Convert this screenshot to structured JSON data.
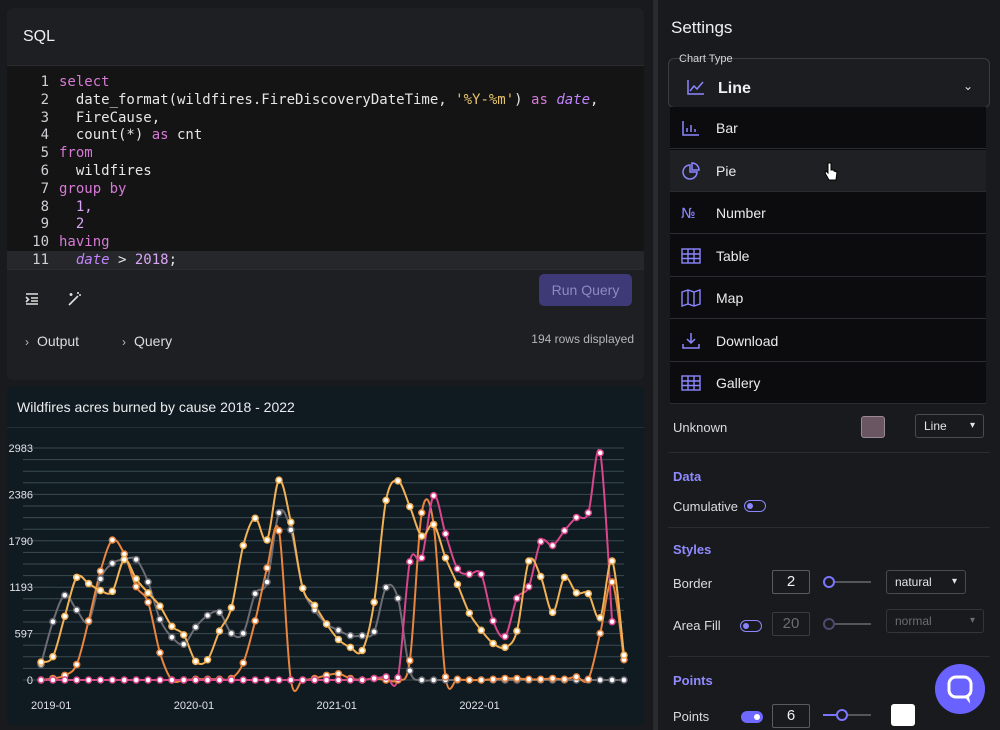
{
  "editor": {
    "title": "SQL",
    "line_numbers": [
      "1",
      "2",
      "3",
      "4",
      "5",
      "6",
      "7",
      "8",
      "9",
      "10",
      "11"
    ],
    "lines": [
      [
        {
          "t": "select",
          "c": "kw"
        }
      ],
      [
        {
          "t": "  date_format(wildfires.FireDiscoveryDateTime, ",
          "c": "fn"
        },
        {
          "t": "'%Y-%m'",
          "c": "str"
        },
        {
          "t": ") ",
          "c": "fn"
        },
        {
          "t": "as",
          "c": "kw"
        },
        {
          "t": " ",
          "c": "fn"
        },
        {
          "t": "date",
          "c": "it"
        },
        {
          "t": ",",
          "c": "fn"
        }
      ],
      [
        {
          "t": "  FireCause,",
          "c": "fn"
        }
      ],
      [
        {
          "t": "  count(*) ",
          "c": "fn"
        },
        {
          "t": "as",
          "c": "kw"
        },
        {
          "t": " cnt",
          "c": "fn"
        }
      ],
      [
        {
          "t": "from",
          "c": "kw"
        }
      ],
      [
        {
          "t": "  wildfires",
          "c": "fn"
        }
      ],
      [
        {
          "t": "group by",
          "c": "kw"
        }
      ],
      [
        {
          "t": "  1,",
          "c": "num"
        }
      ],
      [
        {
          "t": "  2",
          "c": "num"
        }
      ],
      [
        {
          "t": "having",
          "c": "kw"
        }
      ],
      [
        {
          "t": "  ",
          "c": "fn"
        },
        {
          "t": "date",
          "c": "it"
        },
        {
          "t": " > ",
          "c": "fn"
        },
        {
          "t": "2018",
          "c": "num"
        },
        {
          "t": ";",
          "c": "fn"
        }
      ]
    ],
    "indent_icon": "indent-icon",
    "format_icon": "magic-wand-icon",
    "run_label": "Run Query",
    "output_label": "Output",
    "query_label": "Query",
    "rows_displayed": "194 rows displayed"
  },
  "chart_data": {
    "type": "line",
    "title": "Wildfires acres burned by cause 2018 - 2022",
    "xlabel": "",
    "ylabel": "",
    "ylim": [
      0,
      2983
    ],
    "yticks": [
      0,
      597,
      1193,
      1790,
      2386,
      2983
    ],
    "xtick_labels": [
      "2019-01",
      "2020-01",
      "2021-01",
      "2022-01"
    ],
    "xtick_index": [
      0,
      12,
      24,
      36
    ],
    "grid": true,
    "legend": "none",
    "series": [
      {
        "color": "#f2b155",
        "values": [
          230,
          300,
          820,
          1320,
          1240,
          1150,
          1140,
          1550,
          1300,
          1120,
          950,
          690,
          580,
          240,
          260,
          630,
          930,
          1730,
          2080,
          1800,
          2570,
          2030,
          1180,
          960,
          720,
          520,
          420,
          380,
          1000,
          2310,
          2560,
          2230,
          1850,
          2000,
          1570,
          1230,
          860,
          640,
          470,
          420,
          630,
          1530,
          1330,
          870,
          1320,
          1120,
          1110,
          800,
          1530,
          320
        ]
      },
      {
        "color": "#e8853f",
        "values": [
          0,
          20,
          60,
          200,
          760,
          1400,
          1800,
          1620,
          1200,
          1000,
          350,
          0,
          0,
          10,
          10,
          10,
          20,
          220,
          760,
          1440,
          1920,
          0,
          0,
          20,
          60,
          80,
          20,
          0,
          20,
          0,
          0,
          250,
          2150,
          2000,
          40,
          10,
          0,
          0,
          10,
          20,
          20,
          10,
          10,
          20,
          10,
          40,
          10,
          600,
          1260,
          260
        ]
      },
      {
        "color": "#d9468b",
        "values": [
          0,
          0,
          0,
          0,
          0,
          0,
          0,
          0,
          0,
          0,
          0,
          0,
          0,
          0,
          0,
          0,
          0,
          0,
          0,
          0,
          0,
          0,
          0,
          0,
          0,
          0,
          0,
          0,
          20,
          40,
          30,
          1520,
          1570,
          2370,
          1880,
          1430,
          1360,
          1360,
          760,
          560,
          1050,
          1200,
          1780,
          1730,
          1920,
          2090,
          2150,
          2920,
          750
        ]
      },
      {
        "color": "#6d6c74",
        "values": [
          200,
          750,
          1090,
          900,
          750,
          1300,
          1500,
          1550,
          1550,
          1260,
          780,
          550,
          460,
          680,
          830,
          870,
          600,
          600,
          1110,
          1260,
          2150,
          1930,
          1180,
          900,
          720,
          640,
          570,
          570,
          620,
          1190,
          1050,
          120,
          0,
          0,
          0,
          0,
          0,
          0,
          0,
          0,
          0,
          0,
          0,
          0,
          0,
          0,
          0,
          0,
          0,
          0
        ]
      }
    ]
  },
  "settings": {
    "title": "Settings",
    "chart_type_label": "Chart Type",
    "chart_type_value": "Line",
    "chart_type_icon": "line-chart-icon",
    "options": [
      {
        "label": "Bar",
        "icon": "bar-chart-icon"
      },
      {
        "label": "Pie",
        "icon": "pie-chart-icon"
      },
      {
        "label": "Number",
        "icon": "number-icon",
        "glyph": "№"
      },
      {
        "label": "Table",
        "icon": "table-icon"
      },
      {
        "label": "Map",
        "icon": "map-icon"
      },
      {
        "label": "Download",
        "icon": "download-icon"
      },
      {
        "label": "Gallery",
        "icon": "gallery-icon"
      }
    ],
    "hovered_option": "Pie",
    "unknown_label": "Unknown",
    "unknown_color": "#6a5563",
    "unknown_type": "Line",
    "data_section": "Data",
    "cumulative_label": "Cumulative",
    "cumulative_on": false,
    "styles_section": "Styles",
    "border_label": "Border",
    "border_value": "2",
    "border_level": 0.0,
    "border_curve": "natural",
    "area_fill_label": "Area Fill",
    "area_fill_on": false,
    "area_fill_value": "20",
    "area_fill_blend": "normal",
    "points_section": "Points",
    "points_label": "Points",
    "points_on": true,
    "points_value": "6",
    "points_color": "#ffffff",
    "accent": "#7b76ff",
    "help_icon": "chat-help-icon"
  }
}
